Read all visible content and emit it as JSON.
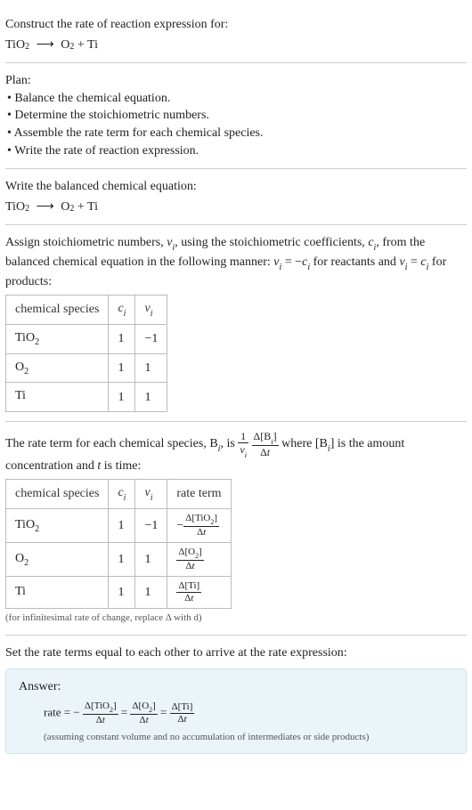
{
  "intro": {
    "prompt": "Construct the rate of reaction expression for:",
    "species": {
      "r1": "TiO",
      "r1sub": "2",
      "arrow": "⟶",
      "p1": "O",
      "p1sub": "2",
      "plus": " + ",
      "p2": "Ti"
    }
  },
  "plan": {
    "heading": "Plan:",
    "items": [
      "• Balance the chemical equation.",
      "• Determine the stoichiometric numbers.",
      "• Assemble the rate term for each chemical species.",
      "• Write the rate of reaction expression."
    ]
  },
  "balanced": {
    "heading": "Write the balanced chemical equation:",
    "species": {
      "r1": "TiO",
      "r1sub": "2",
      "arrow": "⟶",
      "p1": "O",
      "p1sub": "2",
      "plus": " + ",
      "p2": "Ti"
    }
  },
  "stoich": {
    "text1": "Assign stoichiometric numbers, ",
    "nu_i": "ν",
    "nu_i_sub": "i",
    "text2": ", using the stoichiometric coefficients, ",
    "c_i": "c",
    "c_i_sub": "i",
    "text3": ", from the balanced chemical equation in the following manner: ",
    "eq1a": "ν",
    "eq1a_sub": "i",
    "eq1b": " = −",
    "eq1c": "c",
    "eq1c_sub": "i",
    "text4": " for reactants and ",
    "eq2a": "ν",
    "eq2a_sub": "i",
    "eq2b": " = ",
    "eq2c": "c",
    "eq2c_sub": "i",
    "text5": " for products:",
    "table": {
      "h1": "chemical species",
      "h2": "c",
      "h2sub": "i",
      "h3": "ν",
      "h3sub": "i",
      "rows": [
        {
          "sp": "TiO",
          "spsub": "2",
          "c": "1",
          "nu": "−1"
        },
        {
          "sp": "O",
          "spsub": "2",
          "c": "1",
          "nu": "1"
        },
        {
          "sp": "Ti",
          "spsub": "",
          "c": "1",
          "nu": "1"
        }
      ]
    }
  },
  "rateterm": {
    "text1": "The rate term for each chemical species, B",
    "bi_sub": "i",
    "text2": ", is ",
    "frac1": {
      "num": "1",
      "den_a": "ν",
      "den_sub": "i"
    },
    "frac2": {
      "num_a": "Δ[B",
      "num_sub": "i",
      "num_b": "]",
      "den": "Δt"
    },
    "text3": " where [B",
    "text3sub": "i",
    "text4": "] is the amount concentration and ",
    "tvar": "t",
    "text5": " is time:",
    "table": {
      "h1": "chemical species",
      "h2": "c",
      "h2sub": "i",
      "h3": "ν",
      "h3sub": "i",
      "h4": "rate term",
      "rows": [
        {
          "sp": "TiO",
          "spsub": "2",
          "c": "1",
          "nu": "−1",
          "rt_neg": "−",
          "rt_num": "Δ[TiO",
          "rt_numsub": "2",
          "rt_numend": "]",
          "rt_den": "Δt"
        },
        {
          "sp": "O",
          "spsub": "2",
          "c": "1",
          "nu": "1",
          "rt_neg": "",
          "rt_num": "Δ[O",
          "rt_numsub": "2",
          "rt_numend": "]",
          "rt_den": "Δt"
        },
        {
          "sp": "Ti",
          "spsub": "",
          "c": "1",
          "nu": "1",
          "rt_neg": "",
          "rt_num": "Δ[Ti",
          "rt_numsub": "",
          "rt_numend": "]",
          "rt_den": "Δt"
        }
      ]
    },
    "caption": "(for infinitesimal rate of change, replace Δ with d)"
  },
  "final": {
    "heading": "Set the rate terms equal to each other to arrive at the rate expression:",
    "answer_label": "Answer:",
    "rate": {
      "lead": "rate = −",
      "t1": {
        "num": "Δ[TiO",
        "numsub": "2",
        "numend": "]",
        "den": "Δt"
      },
      "eq": " = ",
      "t2": {
        "num": "Δ[O",
        "numsub": "2",
        "numend": "]",
        "den": "Δt"
      },
      "t3": {
        "num": "Δ[Ti]",
        "den": "Δt"
      }
    },
    "footnote": "(assuming constant volume and no accumulation of intermediates or side products)"
  }
}
